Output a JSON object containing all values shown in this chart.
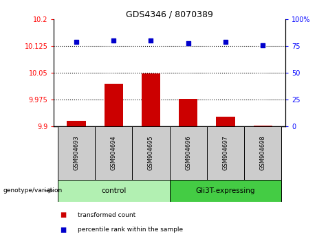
{
  "title": "GDS4346 / 8070389",
  "samples": [
    "GSM904693",
    "GSM904694",
    "GSM904695",
    "GSM904696",
    "GSM904697",
    "GSM904698"
  ],
  "bar_values": [
    9.915,
    10.02,
    10.048,
    9.978,
    9.928,
    9.903
  ],
  "dot_values": [
    79,
    80,
    80,
    78,
    79,
    76
  ],
  "bar_color": "#cc0000",
  "dot_color": "#0000cc",
  "ylim_left": [
    9.9,
    10.2
  ],
  "ylim_right": [
    0,
    100
  ],
  "yticks_left": [
    9.9,
    9.975,
    10.05,
    10.125,
    10.2
  ],
  "ytick_labels_left": [
    "9.9",
    "9.975",
    "10.05",
    "10.125",
    "10.2"
  ],
  "yticks_right": [
    0,
    25,
    50,
    75,
    100
  ],
  "ytick_labels_right": [
    "0",
    "25",
    "50",
    "75",
    "100%"
  ],
  "hlines": [
    9.975,
    10.05,
    10.125
  ],
  "groups": [
    {
      "label": "control",
      "indices": [
        0,
        1,
        2
      ],
      "color": "#b2f0b2"
    },
    {
      "label": "Gli3T-expressing",
      "indices": [
        3,
        4,
        5
      ],
      "color": "#44cc44"
    }
  ],
  "group_header": "genotype/variation",
  "legend_items": [
    {
      "label": "transformed count",
      "color": "#cc0000"
    },
    {
      "label": "percentile rank within the sample",
      "color": "#0000cc"
    }
  ],
  "background_color": "#ffffff",
  "plot_bg": "#ffffff",
  "sample_bg": "#cccccc",
  "bar_width": 0.5
}
